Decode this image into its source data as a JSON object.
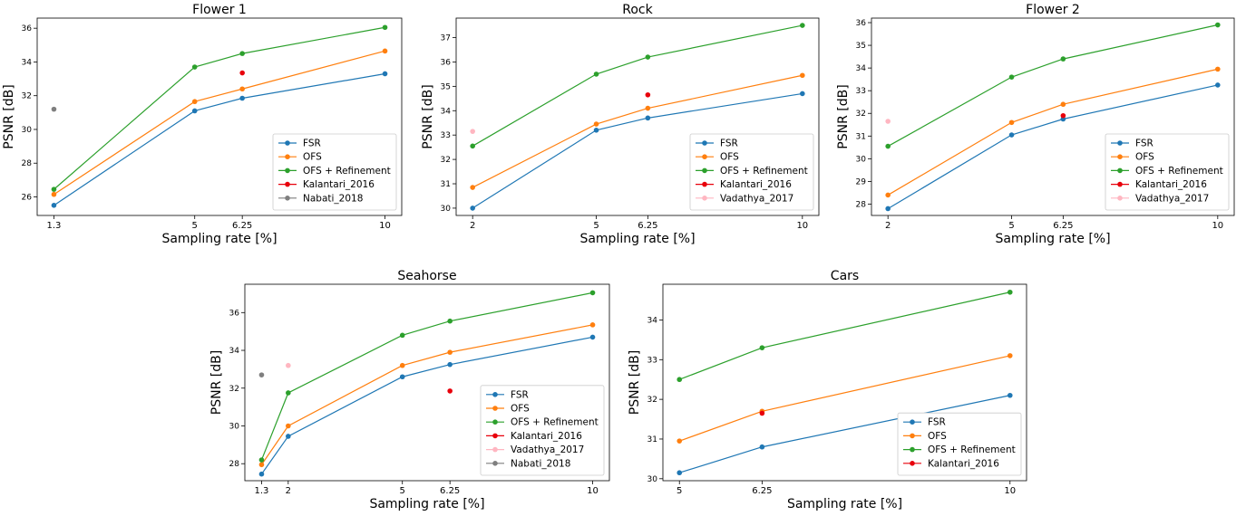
{
  "legend_colors": {
    "FSR": "#1f77b4",
    "OFS": "#ff7f0e",
    "OFS + Refinement": "#2ca02c",
    "Kalantari_2016": "#e8000b",
    "Nabati_2018": "#7f7f7f",
    "Vadathya_2017": "#ffb6c1"
  },
  "chart_data": [
    {
      "type": "line",
      "title": "Flower 1",
      "xlabel": "Sampling rate [%]",
      "ylabel": "PSNR [dB]",
      "xlim": [
        0.86,
        10.44
      ],
      "ylim": [
        24.9,
        36.6
      ],
      "xticks": [
        1.3,
        5,
        6.25,
        10
      ],
      "xticklabels": [
        "1.3",
        "5",
        "6.25",
        "10"
      ],
      "yticks": [
        26,
        28,
        30,
        32,
        34,
        36
      ],
      "yticklabels": [
        "26",
        "28",
        "30",
        "32",
        "34",
        "36"
      ],
      "legend_position": "lower right",
      "series": [
        {
          "name": "FSR",
          "x": [
            1.3,
            5,
            6.25,
            10
          ],
          "y": [
            25.5,
            31.1,
            31.85,
            33.3
          ]
        },
        {
          "name": "OFS",
          "x": [
            1.3,
            5,
            6.25,
            10
          ],
          "y": [
            26.15,
            31.65,
            32.4,
            34.65
          ]
        },
        {
          "name": "OFS + Refinement",
          "x": [
            1.3,
            5,
            6.25,
            10
          ],
          "y": [
            26.45,
            33.7,
            34.5,
            36.05
          ]
        },
        {
          "name": "Kalantari_2016",
          "x": [
            6.25
          ],
          "y": [
            33.35
          ]
        },
        {
          "name": "Nabati_2018",
          "x": [
            1.3
          ],
          "y": [
            31.2
          ]
        }
      ]
    },
    {
      "type": "line",
      "title": "Rock",
      "xlabel": "Sampling rate [%]",
      "ylabel": "PSNR [dB]",
      "xlim": [
        1.6,
        10.4
      ],
      "ylim": [
        29.7,
        37.8
      ],
      "xticks": [
        2,
        5,
        6.25,
        10
      ],
      "xticklabels": [
        "2",
        "5",
        "6.25",
        "10"
      ],
      "yticks": [
        30,
        31,
        32,
        33,
        34,
        35,
        36,
        37
      ],
      "yticklabels": [
        "30",
        "31",
        "32",
        "33",
        "34",
        "35",
        "36",
        "37"
      ],
      "legend_position": "lower right",
      "series": [
        {
          "name": "FSR",
          "x": [
            2,
            5,
            6.25,
            10
          ],
          "y": [
            30.0,
            33.2,
            33.7,
            34.7
          ]
        },
        {
          "name": "OFS",
          "x": [
            2,
            5,
            6.25,
            10
          ],
          "y": [
            30.85,
            33.45,
            34.1,
            35.45
          ]
        },
        {
          "name": "OFS + Refinement",
          "x": [
            2,
            5,
            6.25,
            10
          ],
          "y": [
            32.55,
            35.5,
            36.2,
            37.5
          ]
        },
        {
          "name": "Kalantari_2016",
          "x": [
            6.25
          ],
          "y": [
            34.65
          ]
        },
        {
          "name": "Vadathya_2017",
          "x": [
            2
          ],
          "y": [
            33.15
          ]
        }
      ]
    },
    {
      "type": "line",
      "title": "Flower 2",
      "xlabel": "Sampling rate [%]",
      "ylabel": "PSNR [dB]",
      "xlim": [
        1.6,
        10.4
      ],
      "ylim": [
        27.5,
        36.2
      ],
      "xticks": [
        2,
        5,
        6.25,
        10
      ],
      "xticklabels": [
        "2",
        "5",
        "6.25",
        "10"
      ],
      "yticks": [
        28,
        29,
        30,
        31,
        32,
        33,
        34,
        35,
        36
      ],
      "yticklabels": [
        "28",
        "29",
        "30",
        "31",
        "32",
        "33",
        "34",
        "35",
        "36"
      ],
      "legend_position": "lower right",
      "series": [
        {
          "name": "FSR",
          "x": [
            2,
            5,
            6.25,
            10
          ],
          "y": [
            27.8,
            31.05,
            31.75,
            33.25
          ]
        },
        {
          "name": "OFS",
          "x": [
            2,
            5,
            6.25,
            10
          ],
          "y": [
            28.4,
            31.6,
            32.4,
            33.95
          ]
        },
        {
          "name": "OFS + Refinement",
          "x": [
            2,
            5,
            6.25,
            10
          ],
          "y": [
            30.55,
            33.6,
            34.4,
            35.9
          ]
        },
        {
          "name": "Kalantari_2016",
          "x": [
            6.25
          ],
          "y": [
            31.9
          ]
        },
        {
          "name": "Vadathya_2017",
          "x": [
            2
          ],
          "y": [
            31.65
          ]
        }
      ]
    },
    {
      "type": "line",
      "title": "Seahorse",
      "xlabel": "Sampling rate [%]",
      "ylabel": "PSNR [dB]",
      "xlim": [
        0.86,
        10.44
      ],
      "ylim": [
        27.1,
        37.5
      ],
      "xticks": [
        1.3,
        2,
        5,
        6.25,
        10
      ],
      "xticklabels": [
        "1.3",
        "2",
        "5",
        "6.25",
        "10"
      ],
      "yticks": [
        28,
        30,
        32,
        34,
        36
      ],
      "yticklabels": [
        "28",
        "30",
        "32",
        "34",
        "36"
      ],
      "legend_position": "lower right",
      "series": [
        {
          "name": "FSR",
          "x": [
            1.3,
            2,
            5,
            6.25,
            10
          ],
          "y": [
            27.45,
            29.45,
            32.6,
            33.25,
            34.7
          ]
        },
        {
          "name": "OFS",
          "x": [
            1.3,
            2,
            5,
            6.25,
            10
          ],
          "y": [
            27.95,
            30.0,
            33.2,
            33.9,
            35.35
          ]
        },
        {
          "name": "OFS + Refinement",
          "x": [
            1.3,
            2,
            5,
            6.25,
            10
          ],
          "y": [
            28.2,
            31.75,
            34.8,
            35.55,
            37.05
          ]
        },
        {
          "name": "Kalantari_2016",
          "x": [
            6.25
          ],
          "y": [
            31.85
          ]
        },
        {
          "name": "Vadathya_2017",
          "x": [
            2
          ],
          "y": [
            33.2
          ]
        },
        {
          "name": "Nabati_2018",
          "x": [
            1.3
          ],
          "y": [
            32.7
          ]
        }
      ]
    },
    {
      "type": "line",
      "title": "Cars",
      "xlabel": "Sampling rate [%]",
      "ylabel": "PSNR [dB]",
      "xlim": [
        4.75,
        10.25
      ],
      "ylim": [
        29.95,
        34.9
      ],
      "xticks": [
        5,
        6.25,
        10
      ],
      "xticklabels": [
        "5",
        "6.25",
        "10"
      ],
      "yticks": [
        30,
        31,
        32,
        33,
        34
      ],
      "yticklabels": [
        "30",
        "31",
        "32",
        "33",
        "34"
      ],
      "legend_position": "lower right",
      "series": [
        {
          "name": "FSR",
          "x": [
            5,
            6.25,
            10
          ],
          "y": [
            30.15,
            30.8,
            32.1
          ]
        },
        {
          "name": "OFS",
          "x": [
            5,
            6.25,
            10
          ],
          "y": [
            30.95,
            31.7,
            33.1
          ]
        },
        {
          "name": "OFS + Refinement",
          "x": [
            5,
            6.25,
            10
          ],
          "y": [
            32.5,
            33.3,
            34.7
          ]
        },
        {
          "name": "Kalantari_2016",
          "x": [
            6.25
          ],
          "y": [
            31.65
          ]
        }
      ]
    }
  ]
}
